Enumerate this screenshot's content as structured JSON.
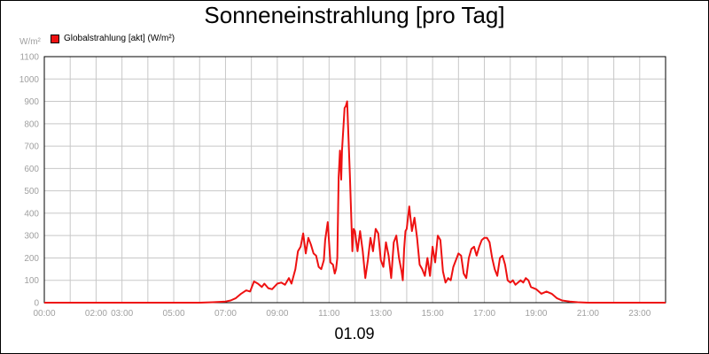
{
  "chart_data": {
    "type": "line",
    "title": "Sonneneinstrahlung [pro Tag]",
    "ylabel": "W/m²",
    "xlabel": "01.09",
    "ylim": [
      0,
      1100
    ],
    "xlim": [
      0,
      24
    ],
    "grid": true,
    "legend_placement": "top-left",
    "yticks": [
      0,
      100,
      200,
      300,
      400,
      500,
      600,
      700,
      800,
      900,
      1000,
      1100
    ],
    "xticks": [
      {
        "x": 0,
        "label": "00:00"
      },
      {
        "x": 2,
        "label": "02:00"
      },
      {
        "x": 3,
        "label": "03:00"
      },
      {
        "x": 5,
        "label": "05:00"
      },
      {
        "x": 7,
        "label": "07:00"
      },
      {
        "x": 9,
        "label": "09:00"
      },
      {
        "x": 11,
        "label": "11:00"
      },
      {
        "x": 13,
        "label": "13:00"
      },
      {
        "x": 15,
        "label": "15:00"
      },
      {
        "x": 17,
        "label": "17:00"
      },
      {
        "x": 19,
        "label": "19:00"
      },
      {
        "x": 21,
        "label": "21:00"
      },
      {
        "x": 23,
        "label": "23:00"
      }
    ],
    "series": [
      {
        "name": "Globalstrahlung [akt] (W/m²)",
        "color": "#ee1111",
        "x": [
          0,
          6,
          6.5,
          7,
          7.2,
          7.4,
          7.6,
          7.8,
          7.95,
          8.1,
          8.25,
          8.4,
          8.5,
          8.65,
          8.8,
          9.0,
          9.15,
          9.3,
          9.45,
          9.55,
          9.7,
          9.8,
          9.9,
          10.0,
          10.1,
          10.2,
          10.3,
          10.4,
          10.5,
          10.6,
          10.7,
          10.8,
          10.85,
          10.95,
          11.05,
          11.15,
          11.22,
          11.27,
          11.32,
          11.37,
          11.42,
          11.47,
          11.5,
          11.6,
          11.65,
          11.7,
          11.8,
          11.9,
          11.95,
          12.0,
          12.1,
          12.2,
          12.3,
          12.4,
          12.5,
          12.6,
          12.7,
          12.8,
          12.9,
          13.0,
          13.1,
          13.2,
          13.3,
          13.4,
          13.5,
          13.6,
          13.7,
          13.8,
          13.85,
          13.9,
          13.95,
          14.0,
          14.1,
          14.2,
          14.3,
          14.4,
          14.5,
          14.6,
          14.7,
          14.8,
          14.9,
          15.0,
          15.1,
          15.2,
          15.3,
          15.4,
          15.5,
          15.6,
          15.7,
          15.8,
          15.9,
          16.0,
          16.1,
          16.2,
          16.3,
          16.4,
          16.5,
          16.6,
          16.7,
          16.8,
          16.9,
          17.0,
          17.1,
          17.2,
          17.3,
          17.4,
          17.5,
          17.6,
          17.7,
          17.8,
          17.9,
          18.0,
          18.1,
          18.2,
          18.3,
          18.4,
          18.5,
          18.6,
          18.7,
          18.8,
          19.0,
          19.2,
          19.4,
          19.6,
          19.8,
          20.0,
          20.3,
          20.6,
          21.0,
          24.0
        ],
        "y": [
          0,
          0,
          2,
          5,
          10,
          20,
          40,
          55,
          50,
          95,
          85,
          70,
          85,
          65,
          60,
          85,
          90,
          80,
          110,
          85,
          150,
          230,
          250,
          310,
          220,
          290,
          260,
          220,
          210,
          160,
          150,
          190,
          280,
          360,
          180,
          170,
          130,
          150,
          200,
          560,
          680,
          550,
          680,
          870,
          880,
          900,
          580,
          230,
          330,
          320,
          230,
          320,
          230,
          110,
          190,
          290,
          230,
          330,
          310,
          190,
          160,
          270,
          210,
          110,
          270,
          300,
          200,
          140,
          100,
          240,
          320,
          330,
          430,
          320,
          380,
          290,
          170,
          150,
          120,
          200,
          120,
          250,
          180,
          300,
          280,
          140,
          90,
          110,
          100,
          160,
          190,
          220,
          210,
          130,
          110,
          200,
          240,
          250,
          210,
          250,
          280,
          290,
          290,
          270,
          200,
          150,
          120,
          200,
          210,
          170,
          100,
          90,
          100,
          80,
          90,
          100,
          90,
          110,
          100,
          70,
          60,
          40,
          50,
          40,
          20,
          10,
          5,
          2,
          0,
          0
        ]
      }
    ]
  }
}
